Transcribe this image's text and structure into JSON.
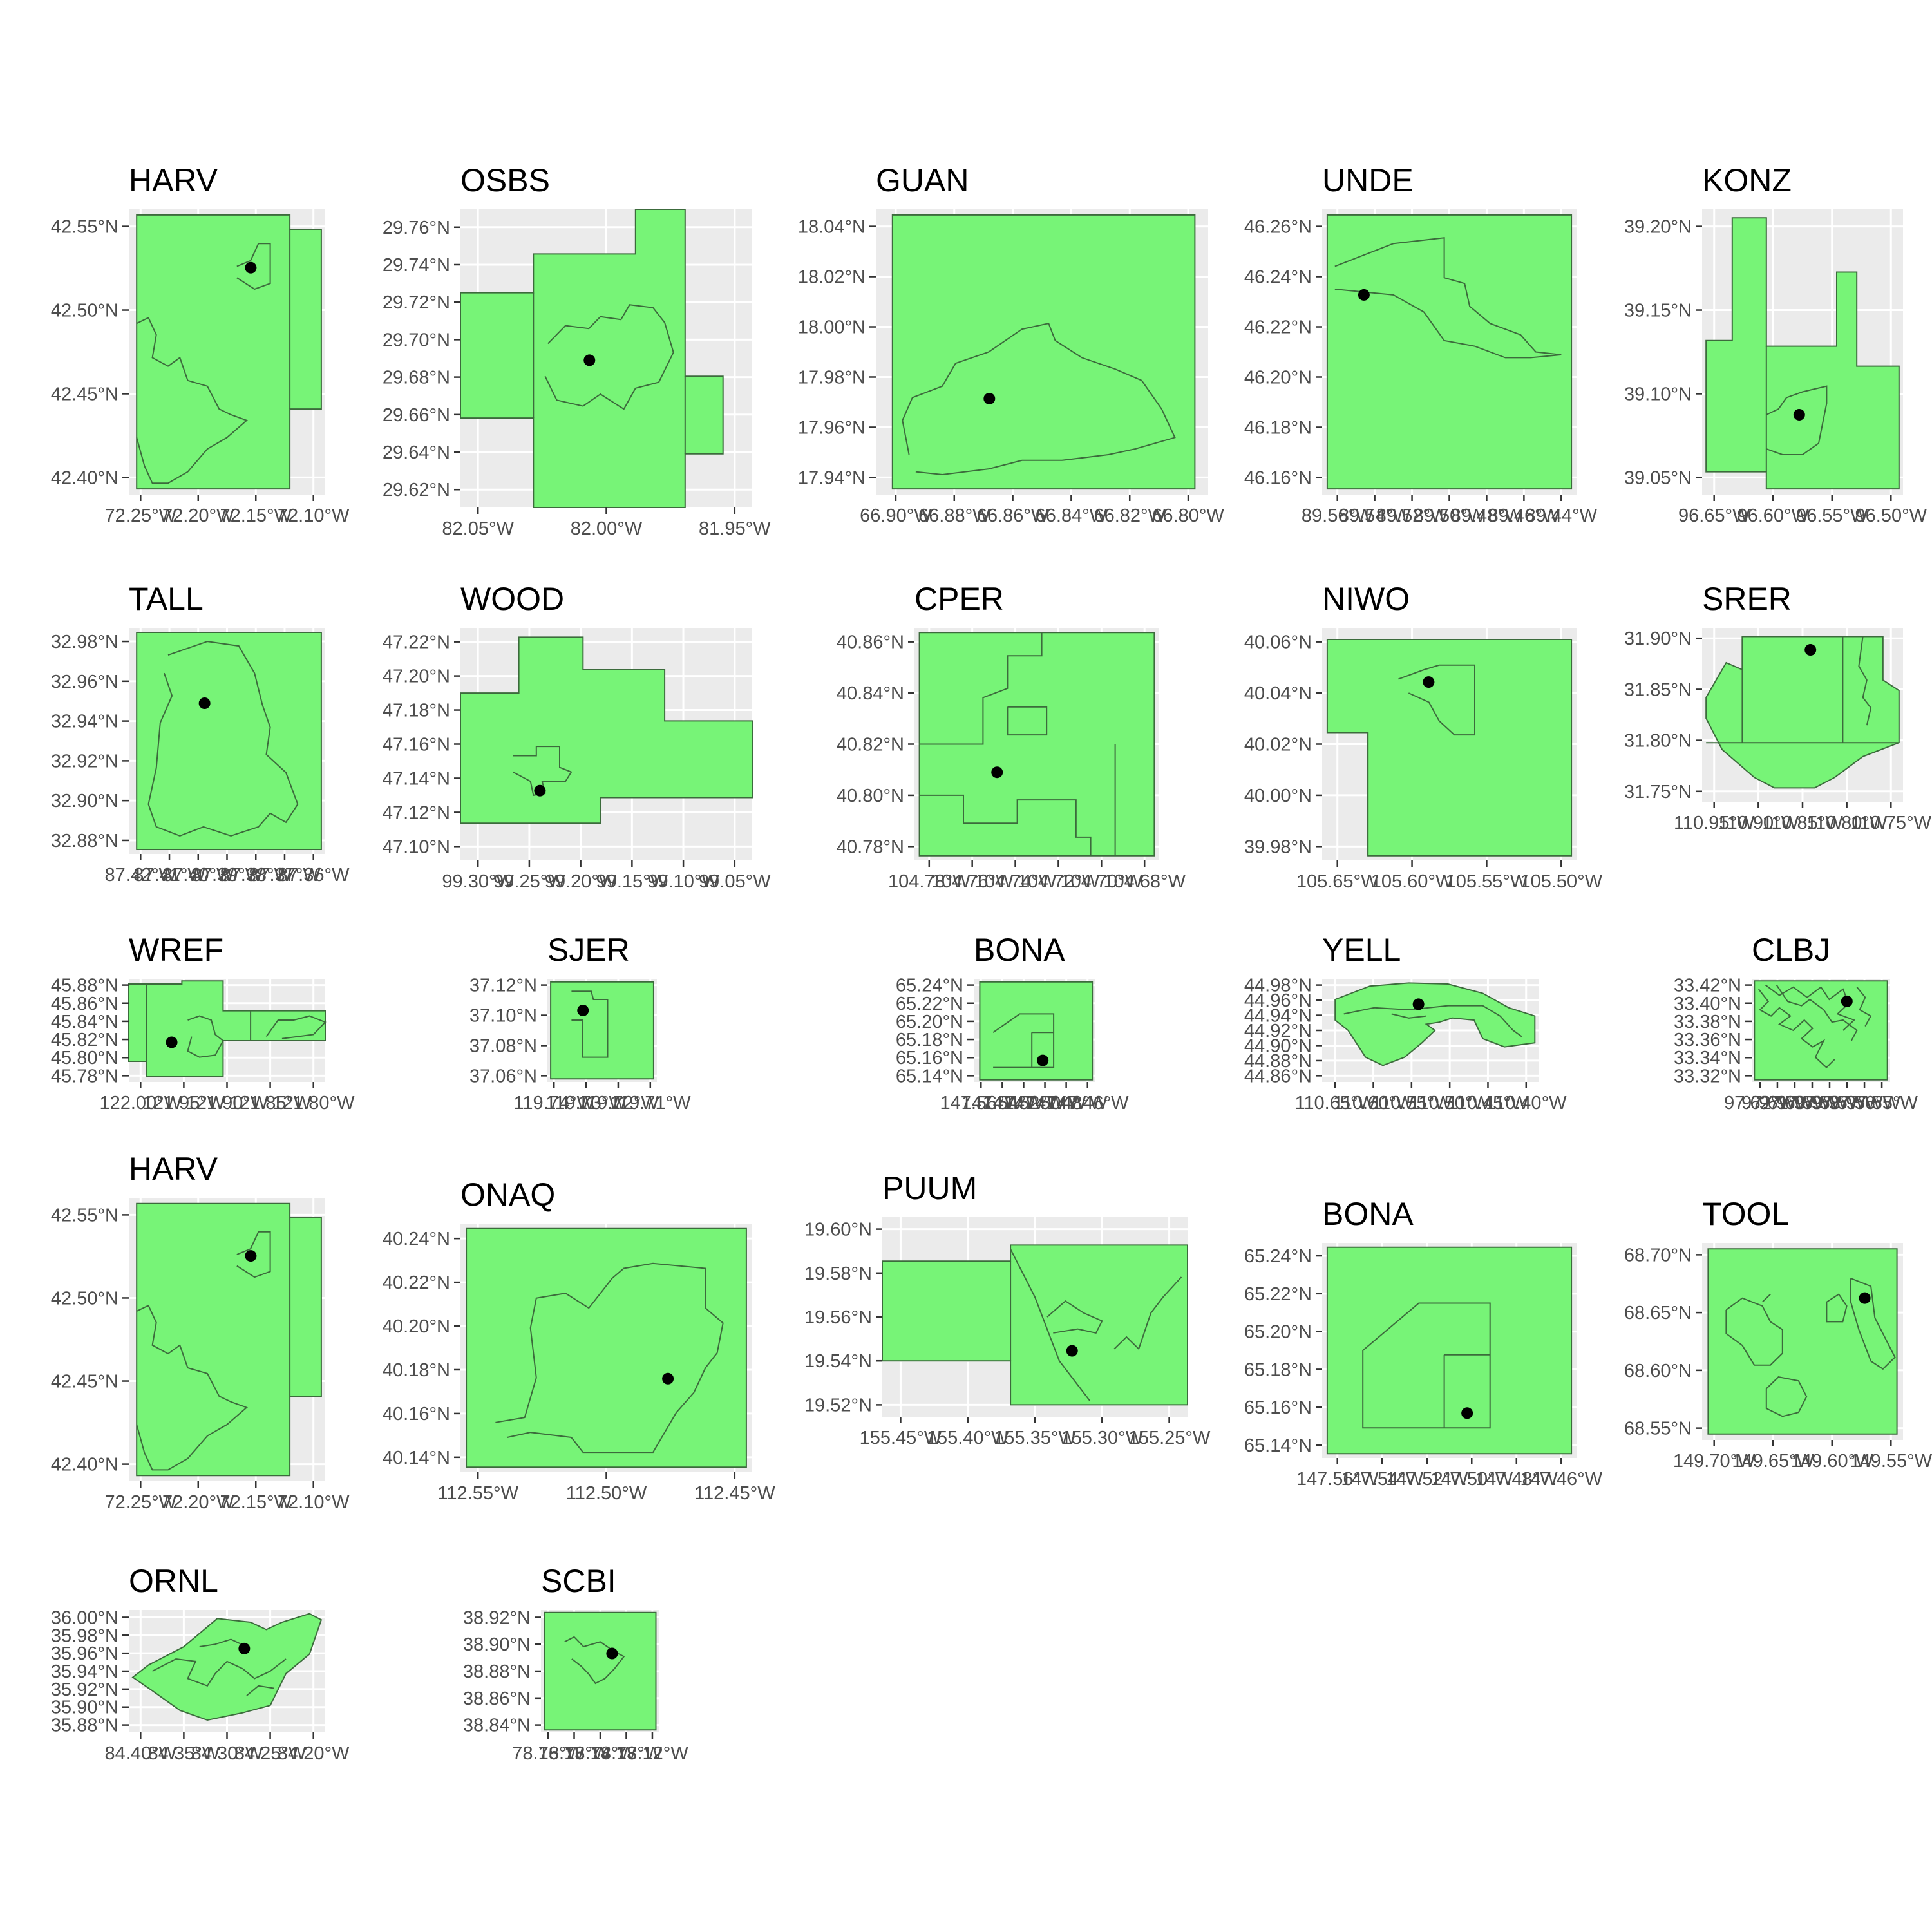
{
  "colors": {
    "panel_bg": "#ebebeb",
    "grid": "#ffffff",
    "boundary_fill": "#77f477",
    "boundary_stroke": "#3c6b3c",
    "tower_point": "#000000",
    "tick_text": "#4d4d4d",
    "title_text": "#000000"
  },
  "chart_data": [
    {
      "type": "map",
      "title": "HARV",
      "xlabel": "",
      "ylabel": "",
      "xlim": [
        -72.29,
        -72.1
      ],
      "ylim": [
        42.37,
        42.58
      ],
      "x_ticks": [
        "72.25°W",
        "72.20°W",
        "72.15°W",
        "72.10°W"
      ],
      "y_ticks": [
        "42.40°N",
        "42.45°N",
        "42.50°N",
        "42.55°N"
      ],
      "tower": {
        "lon": -72.172,
        "lat": 42.537
      }
    },
    {
      "type": "map",
      "title": "OSBS",
      "xlabel": "",
      "ylabel": "",
      "xlim": [
        -82.09,
        -81.9
      ],
      "ylim": [
        29.61,
        29.77
      ],
      "x_ticks": [
        "82.05°W",
        "82.00°W",
        "81.95°W"
      ],
      "y_ticks": [
        "29.62°N",
        "29.64°N",
        "29.66°N",
        "29.68°N",
        "29.70°N",
        "29.72°N",
        "29.74°N",
        "29.76°N"
      ],
      "tower": {
        "lon": -82.006,
        "lat": 29.689
      }
    },
    {
      "type": "map",
      "title": "GUAN",
      "xlabel": "",
      "ylabel": "",
      "xlim": [
        -66.91,
        -66.79
      ],
      "ylim": [
        17.933,
        18.04
      ],
      "x_ticks": [
        "66.90°W",
        "66.88°W",
        "66.86°W",
        "66.84°W",
        "66.82°W",
        "66.80°W"
      ],
      "y_ticks": [
        "17.94°N",
        "17.96°N",
        "17.98°N",
        "18.00°N",
        "18.02°N",
        "18.04°N"
      ],
      "tower": {
        "lon": -66.869,
        "lat": 17.969
      }
    },
    {
      "type": "map",
      "title": "UNDE",
      "xlabel": "",
      "ylabel": "",
      "xlim": [
        -89.56,
        -89.42
      ],
      "ylim": [
        46.15,
        46.27
      ],
      "x_ticks": [
        "89.56°W",
        "89.54°W",
        "89.52°W",
        "89.50°W",
        "89.48°W",
        "89.46°W",
        "89.44°W"
      ],
      "y_ticks": [
        "46.16°N",
        "46.18°N",
        "46.20°N",
        "46.22°N",
        "46.24°N",
        "46.26°N"
      ],
      "tower": {
        "lon": -89.537,
        "lat": 46.234
      }
    },
    {
      "type": "map",
      "title": "KONZ",
      "xlabel": "",
      "ylabel": "",
      "xlim": [
        -96.65,
        -96.47
      ],
      "ylim": [
        39.045,
        39.245
      ],
      "x_ticks": [
        "96.65°W",
        "96.60°W",
        "96.55°W",
        "96.50°W"
      ],
      "y_ticks": [
        "39.05°N",
        "39.10°N",
        "39.15°N",
        "39.20°N"
      ],
      "tower": {
        "lon": -96.563,
        "lat": 39.101
      }
    },
    {
      "type": "map",
      "title": "TALL",
      "xlabel": "",
      "ylabel": "",
      "xlim": [
        -87.42,
        -87.35
      ],
      "ylim": [
        32.87,
        32.99
      ],
      "x_ticks": [
        "87.42°W",
        "87.41°W",
        "87.40°W",
        "87.39°W",
        "87.38°W",
        "87.37°W",
        "87.36°W"
      ],
      "y_ticks": [
        "32.88°N",
        "32.90°N",
        "32.92°N",
        "32.94°N",
        "32.96°N",
        "32.98°N"
      ],
      "tower": {
        "lon": -87.393,
        "lat": 32.95
      }
    },
    {
      "type": "map",
      "title": "WOOD",
      "xlabel": "",
      "ylabel": "",
      "xlim": [
        -99.32,
        -99.03
      ],
      "ylim": [
        47.08,
        47.24
      ],
      "x_ticks": [
        "99.30°W",
        "99.25°W",
        "99.20°W",
        "99.15°W",
        "99.10°W",
        "99.05°W"
      ],
      "y_ticks": [
        "47.10°N",
        "47.12°N",
        "47.14°N",
        "47.16°N",
        "47.18°N",
        "47.20°N",
        "47.22°N"
      ],
      "tower": {
        "lon": -99.241,
        "lat": 47.128
      }
    },
    {
      "type": "map",
      "title": "CPER",
      "xlabel": "",
      "ylabel": "",
      "xlim": [
        -104.8,
        -104.64
      ],
      "ylim": [
        40.78,
        40.875
      ],
      "x_ticks": [
        "104.78°W",
        "104.76°W",
        "104.74°W",
        "104.72°W",
        "104.70°W",
        "104.68°W"
      ],
      "y_ticks": [
        "40.78°N",
        "40.80°N",
        "40.82°N",
        "40.84°N",
        "40.86°N"
      ],
      "tower": {
        "lon": -104.746,
        "lat": 40.816
      }
    },
    {
      "type": "map",
      "title": "NIWO",
      "xlabel": "",
      "ylabel": "",
      "xlim": [
        -105.65,
        -105.49
      ],
      "ylim": [
        39.975,
        40.078
      ],
      "x_ticks": [
        "105.65°W",
        "105.60°W",
        "105.55°W",
        "105.50°W"
      ],
      "y_ticks": [
        "39.98°N",
        "40.00°N",
        "40.02°N",
        "40.04°N",
        "40.06°N"
      ],
      "tower": {
        "lon": -105.583,
        "lat": 40.054
      }
    },
    {
      "type": "map",
      "title": "SRER",
      "xlabel": "",
      "ylabel": "",
      "xlim": [
        -110.96,
        -110.73
      ],
      "ylim": [
        31.71,
        31.94
      ],
      "x_ticks": [
        "110.95°W",
        "110.90°W",
        "110.85°W",
        "110.80°W",
        "110.75°W"
      ],
      "y_ticks": [
        "31.75°N",
        "31.80°N",
        "31.85°N",
        "31.90°N"
      ],
      "tower": {
        "lon": -110.836,
        "lat": 31.911
      }
    },
    {
      "type": "map",
      "title": "WREF",
      "xlabel": "",
      "ylabel": "",
      "xlim": [
        -122.0,
        -121.78
      ],
      "ylim": [
        45.775,
        45.892
      ],
      "x_ticks": [
        "122.00°W",
        "121.95°W",
        "121.90°W",
        "121.85°W",
        "121.80°W"
      ],
      "y_ticks": [
        "45.78°N",
        "45.80°N",
        "45.82°N",
        "45.84°N",
        "45.86°N",
        "45.88°N"
      ],
      "tower": {
        "lon": -121.952,
        "lat": 45.82
      }
    },
    {
      "type": "map",
      "title": "SJER",
      "xlabel": "",
      "ylabel": "",
      "xlim": [
        -119.745,
        -119.705
      ],
      "ylim": [
        37.05,
        37.135
      ],
      "x_ticks": [
        "119.74°W",
        "119.73°W",
        "119.72°W",
        "119.71°W"
      ],
      "y_ticks": [
        "37.06°N",
        "37.08°N",
        "37.10°N",
        "37.12°N"
      ],
      "tower": {
        "lon": -119.732,
        "lat": 37.109
      }
    },
    {
      "type": "map",
      "title": "BONA",
      "xlabel": "",
      "ylabel": "",
      "xlim": [
        -147.56,
        -147.46
      ],
      "ylim": [
        65.13,
        65.245
      ],
      "x_ticks": [
        "147.56°W",
        "147.54°W",
        "147.52°W",
        "147.50°W",
        "147.48°W",
        "147.46°W"
      ],
      "y_ticks": [
        "65.14°N",
        "65.16°N",
        "65.18°N",
        "65.20°N",
        "65.22°N",
        "65.24°N"
      ],
      "tower": {
        "lon": -147.503,
        "lat": 65.154
      }
    },
    {
      "type": "map",
      "title": "YELL",
      "xlabel": "",
      "ylabel": "",
      "xlim": [
        -110.65,
        -110.4
      ],
      "ylim": [
        44.855,
        44.985
      ],
      "x_ticks": [
        "110.65°W",
        "110.60°W",
        "110.55°W",
        "110.50°W",
        "110.45°W",
        "110.40°W"
      ],
      "y_ticks": [
        "44.86°N",
        "44.88°N",
        "44.90°N",
        "44.92°N",
        "44.94°N",
        "44.96°N",
        "44.98°N"
      ],
      "tower": {
        "lon": -110.539,
        "lat": 44.953
      }
    },
    {
      "type": "map",
      "title": "CLBJ",
      "xlabel": "",
      "ylabel": "",
      "xlim": [
        -97.625,
        -97.545
      ],
      "ylim": [
        33.315,
        33.425
      ],
      "x_ticks": [
        "97.62°W",
        "97.61°W",
        "97.60°W",
        "97.59°W",
        "97.58°W",
        "97.57°W",
        "97.56°W",
        "97.55°W"
      ],
      "y_ticks": [
        "33.32°N",
        "33.34°N",
        "33.36°N",
        "33.38°N",
        "33.40°N",
        "33.42°N"
      ],
      "tower": {
        "lon": -97.57,
        "lat": 33.401
      }
    },
    {
      "type": "map",
      "title": "HARV",
      "xlabel": "",
      "ylabel": "",
      "xlim": [
        -72.29,
        -72.1
      ],
      "ylim": [
        42.37,
        42.58
      ],
      "x_ticks": [
        "72.25°W",
        "72.20°W",
        "72.15°W",
        "72.10°W"
      ],
      "y_ticks": [
        "42.40°N",
        "42.45°N",
        "42.50°N",
        "42.55°N"
      ],
      "tower": {
        "lon": -72.172,
        "lat": 42.537
      }
    },
    {
      "type": "map",
      "title": "ONAQ",
      "xlabel": "",
      "ylabel": "",
      "xlim": [
        -112.58,
        -112.4
      ],
      "ylim": [
        40.137,
        40.246
      ],
      "x_ticks": [
        "112.55°W",
        "112.50°W",
        "112.45°W"
      ],
      "y_ticks": [
        "40.14°N",
        "40.16°N",
        "40.18°N",
        "40.20°N",
        "40.22°N",
        "40.24°N"
      ],
      "tower": {
        "lon": -112.452,
        "lat": 40.178
      }
    },
    {
      "type": "map",
      "title": "PUUM",
      "xlabel": "",
      "ylabel": "",
      "xlim": [
        -155.46,
        -155.23
      ],
      "ylim": [
        19.515,
        19.63
      ],
      "x_ticks": [
        "155.45°W",
        "155.40°W",
        "155.35°W",
        "155.30°W",
        "155.25°W"
      ],
      "y_ticks": [
        "19.52°N",
        "19.54°N",
        "19.56°N",
        "19.58°N",
        "19.60°N"
      ],
      "tower": {
        "lon": -155.317,
        "lat": 19.553
      }
    },
    {
      "type": "map",
      "title": "BONA",
      "xlabel": "",
      "ylabel": "",
      "xlim": [
        -147.56,
        -147.46
      ],
      "ylim": [
        65.13,
        65.245
      ],
      "x_ticks": [
        "147.56°W",
        "147.54°W",
        "147.52°W",
        "147.50°W",
        "147.48°W",
        "147.46°W"
      ],
      "y_ticks": [
        "65.14°N",
        "65.16°N",
        "65.18°N",
        "65.20°N",
        "65.22°N",
        "65.24°N"
      ],
      "tower": {
        "lon": -147.503,
        "lat": 65.154
      }
    },
    {
      "type": "map",
      "title": "TOOL",
      "xlabel": "",
      "ylabel": "",
      "xlim": [
        -149.74,
        -149.53
      ],
      "ylim": [
        68.535,
        68.71
      ],
      "x_ticks": [
        "149.70°W",
        "149.65°W",
        "149.60°W",
        "149.55°W"
      ],
      "y_ticks": [
        "68.55°N",
        "68.60°N",
        "68.65°N",
        "68.70°N"
      ],
      "tower": {
        "lon": -149.57,
        "lat": 68.661
      }
    },
    {
      "type": "map",
      "title": "ORNL",
      "xlabel": "",
      "ylabel": "",
      "xlim": [
        -84.43,
        -84.18
      ],
      "ylim": [
        35.875,
        36.005
      ],
      "x_ticks": [
        "84.40°W",
        "84.35°W",
        "84.30°W",
        "84.25°W",
        "84.20°W"
      ],
      "y_ticks": [
        "35.88°N",
        "35.90°N",
        "35.92°N",
        "35.94°N",
        "35.96°N",
        "35.98°N",
        "36.00°N"
      ],
      "tower": {
        "lon": -84.283,
        "lat": 35.964
      }
    },
    {
      "type": "map",
      "title": "SCBI",
      "xlabel": "",
      "ylabel": "",
      "xlim": [
        -78.17,
        -78.12
      ],
      "ylim": [
        38.835,
        38.925
      ],
      "x_ticks": [
        "78.16°W",
        "78.15°W",
        "78.14°W",
        "78.13°W",
        "78.12°W"
      ],
      "y_ticks": [
        "38.84°N",
        "38.86°N",
        "38.88°N",
        "38.90°N",
        "38.92°N"
      ],
      "tower": {
        "lon": -78.14,
        "lat": 38.893
      }
    }
  ]
}
